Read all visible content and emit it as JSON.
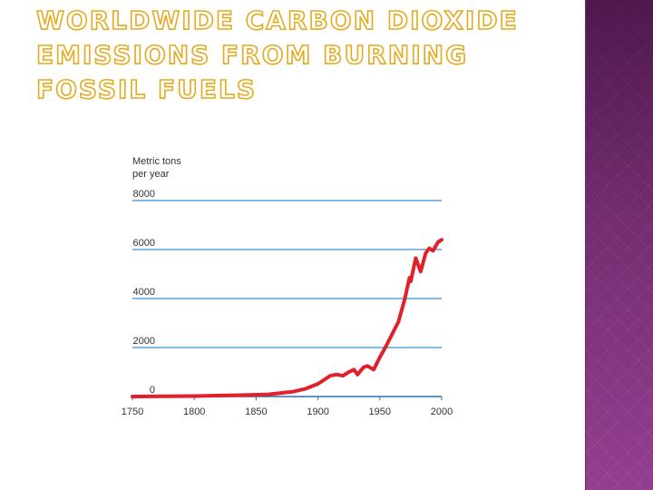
{
  "slide": {
    "title": "Worldwide Carbon Dioxide Emissions from Burning Fossil Fuels"
  },
  "chart_data": {
    "type": "line",
    "title": "Worldwide Carbon Dioxide Emissions from Burning Fossil Fuels",
    "ylabel_lines": [
      "Metric tons",
      "per year"
    ],
    "xlabel": "",
    "xlim": [
      1750,
      2000
    ],
    "ylim": [
      0,
      8000
    ],
    "x_ticks": [
      1750,
      1800,
      1850,
      1900,
      1950,
      2000
    ],
    "y_ticks": [
      0,
      2000,
      4000,
      6000,
      8000
    ],
    "grid": "horizontal",
    "colors": {
      "line": "#e0202a",
      "grid": "#3a8fd0",
      "axis": "#2e6fa8"
    },
    "series": [
      {
        "x": [
          1750,
          1800,
          1840,
          1860,
          1880,
          1890,
          1900,
          1905,
          1910,
          1915,
          1920,
          1925,
          1929,
          1932,
          1937,
          1940,
          1945,
          1950,
          1955,
          1960,
          1965,
          1970,
          1974,
          1975,
          1979,
          1983,
          1987,
          1990,
          1993,
          1997,
          2000
        ],
        "y": [
          0,
          20,
          60,
          90,
          200,
          320,
          520,
          680,
          850,
          900,
          850,
          1000,
          1100,
          900,
          1200,
          1250,
          1100,
          1600,
          2050,
          2550,
          3050,
          3950,
          4850,
          4700,
          5650,
          5100,
          5850,
          6050,
          5950,
          6300,
          6400
        ]
      }
    ]
  }
}
